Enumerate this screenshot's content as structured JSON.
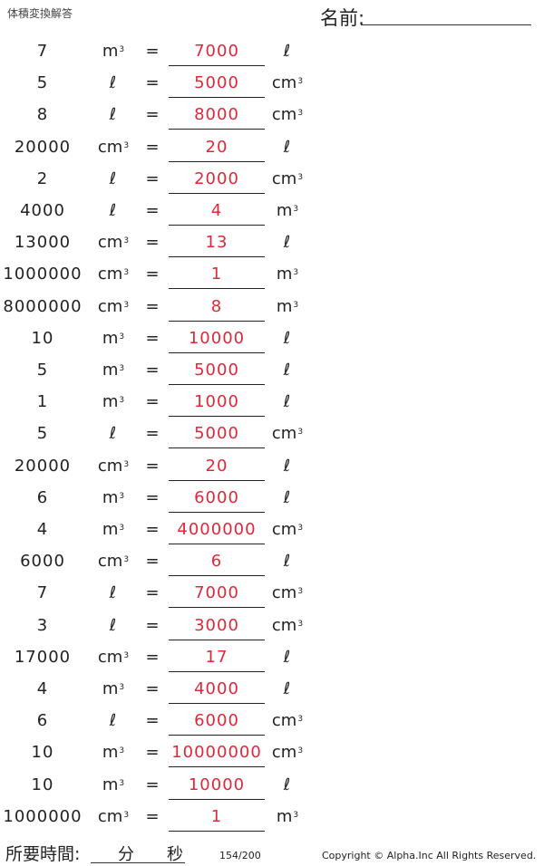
{
  "header": {
    "title": "体積変換解答",
    "name_label": "名前:"
  },
  "rows": [
    {
      "value": "7",
      "from_unit": "m",
      "from_sup": "3",
      "equals": "=",
      "answer": "7000",
      "to_unit": "ℓ",
      "to_sup": ""
    },
    {
      "value": "5",
      "from_unit": "ℓ",
      "from_sup": "",
      "equals": "=",
      "answer": "5000",
      "to_unit": "cm",
      "to_sup": "3"
    },
    {
      "value": "8",
      "from_unit": "ℓ",
      "from_sup": "",
      "equals": "=",
      "answer": "8000",
      "to_unit": "cm",
      "to_sup": "3"
    },
    {
      "value": "20000",
      "from_unit": "cm",
      "from_sup": "3",
      "equals": "=",
      "answer": "20",
      "to_unit": "ℓ",
      "to_sup": ""
    },
    {
      "value": "2",
      "from_unit": "ℓ",
      "from_sup": "",
      "equals": "=",
      "answer": "2000",
      "to_unit": "cm",
      "to_sup": "3"
    },
    {
      "value": "4000",
      "from_unit": "ℓ",
      "from_sup": "",
      "equals": "=",
      "answer": "4",
      "to_unit": "m",
      "to_sup": "3"
    },
    {
      "value": "13000",
      "from_unit": "cm",
      "from_sup": "3",
      "equals": "=",
      "answer": "13",
      "to_unit": "ℓ",
      "to_sup": ""
    },
    {
      "value": "1000000",
      "from_unit": "cm",
      "from_sup": "3",
      "equals": "=",
      "answer": "1",
      "to_unit": "m",
      "to_sup": "3"
    },
    {
      "value": "8000000",
      "from_unit": "cm",
      "from_sup": "3",
      "equals": "=",
      "answer": "8",
      "to_unit": "m",
      "to_sup": "3"
    },
    {
      "value": "10",
      "from_unit": "m",
      "from_sup": "3",
      "equals": "=",
      "answer": "10000",
      "to_unit": "ℓ",
      "to_sup": ""
    },
    {
      "value": "5",
      "from_unit": "m",
      "from_sup": "3",
      "equals": "=",
      "answer": "5000",
      "to_unit": "ℓ",
      "to_sup": ""
    },
    {
      "value": "1",
      "from_unit": "m",
      "from_sup": "3",
      "equals": "=",
      "answer": "1000",
      "to_unit": "ℓ",
      "to_sup": ""
    },
    {
      "value": "5",
      "from_unit": "ℓ",
      "from_sup": "",
      "equals": "=",
      "answer": "5000",
      "to_unit": "cm",
      "to_sup": "3"
    },
    {
      "value": "20000",
      "from_unit": "cm",
      "from_sup": "3",
      "equals": "=",
      "answer": "20",
      "to_unit": "ℓ",
      "to_sup": ""
    },
    {
      "value": "6",
      "from_unit": "m",
      "from_sup": "3",
      "equals": "=",
      "answer": "6000",
      "to_unit": "ℓ",
      "to_sup": ""
    },
    {
      "value": "4",
      "from_unit": "m",
      "from_sup": "3",
      "equals": "=",
      "answer": "4000000",
      "to_unit": "cm",
      "to_sup": "3"
    },
    {
      "value": "6000",
      "from_unit": "cm",
      "from_sup": "3",
      "equals": "=",
      "answer": "6",
      "to_unit": "ℓ",
      "to_sup": ""
    },
    {
      "value": "7",
      "from_unit": "ℓ",
      "from_sup": "",
      "equals": "=",
      "answer": "7000",
      "to_unit": "cm",
      "to_sup": "3"
    },
    {
      "value": "3",
      "from_unit": "ℓ",
      "from_sup": "",
      "equals": "=",
      "answer": "3000",
      "to_unit": "cm",
      "to_sup": "3"
    },
    {
      "value": "17000",
      "from_unit": "cm",
      "from_sup": "3",
      "equals": "=",
      "answer": "17",
      "to_unit": "ℓ",
      "to_sup": ""
    },
    {
      "value": "4",
      "from_unit": "m",
      "from_sup": "3",
      "equals": "=",
      "answer": "4000",
      "to_unit": "ℓ",
      "to_sup": ""
    },
    {
      "value": "6",
      "from_unit": "ℓ",
      "from_sup": "",
      "equals": "=",
      "answer": "6000",
      "to_unit": "cm",
      "to_sup": "3"
    },
    {
      "value": "10",
      "from_unit": "m",
      "from_sup": "3",
      "equals": "=",
      "answer": "10000000",
      "to_unit": "cm",
      "to_sup": "3"
    },
    {
      "value": "10",
      "from_unit": "m",
      "from_sup": "3",
      "equals": "=",
      "answer": "10000",
      "to_unit": "ℓ",
      "to_sup": ""
    },
    {
      "value": "1000000",
      "from_unit": "cm",
      "from_sup": "3",
      "equals": "=",
      "answer": "1",
      "to_unit": "m",
      "to_sup": "3"
    }
  ],
  "footer": {
    "time_label": "所要時間:",
    "minutes_label": "分",
    "seconds_label": "秒",
    "page": "154/200",
    "copyright": "Copyright © Alpha.Inc All Rights Reserved."
  }
}
